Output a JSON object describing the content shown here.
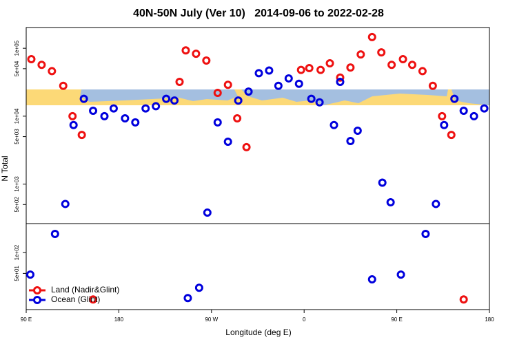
{
  "chart_data": [
    {
      "type": "scatter",
      "title": "40N-50N July (Ver 10)   2014-09-06 to 2022-02-28",
      "y_label": "N Total",
      "log_y": true,
      "xlim": [
        90,
        540
      ],
      "ylim": [
        262,
        202000
      ],
      "yticks": [
        {
          "value": 500,
          "label": "5e+02"
        },
        {
          "value": 1000,
          "label": "1e+03"
        },
        {
          "value": 5000,
          "label": "5e+03"
        },
        {
          "value": 10000,
          "label": "1e+04"
        },
        {
          "value": 50000,
          "label": "5e+04"
        },
        {
          "value": 100000,
          "label": "1e+05"
        }
      ],
      "series": [
        {
          "color": "#ee1111",
          "x": [
            95,
            105,
            115,
            126,
            135,
            144,
            239,
            245,
            255,
            265,
            276,
            286,
            295,
            304,
            357,
            365,
            376,
            385,
            395,
            405,
            415,
            426,
            435,
            445,
            456,
            465,
            475,
            485,
            494,
            503
          ],
          "values": [
            69000,
            57000,
            46000,
            28000,
            10000,
            5300,
            32000,
            93000,
            83000,
            66000,
            22000,
            29000,
            9300,
            3500,
            48000,
            51000,
            48000,
            60000,
            37000,
            52000,
            81000,
            146000,
            87000,
            57000,
            69000,
            57000,
            46000,
            28000,
            10000,
            5300
          ]
        },
        {
          "color": "#0000dd",
          "x": [
            128,
            136,
            146,
            155,
            166,
            175,
            186,
            196,
            206,
            216,
            226,
            234,
            266,
            276,
            286,
            296,
            306,
            316,
            326,
            335,
            345,
            355,
            367,
            375,
            389,
            395,
            405,
            412,
            436,
            444,
            488,
            496,
            506,
            515,
            525,
            535
          ],
          "values": [
            510,
            7400,
            18000,
            12000,
            10000,
            13000,
            9300,
            8100,
            13000,
            14000,
            18000,
            17000,
            380,
            8100,
            4200,
            17000,
            23000,
            43000,
            47000,
            28000,
            36000,
            30000,
            18000,
            16000,
            7400,
            32000,
            4300,
            6100,
            1050,
            540,
            510,
            7400,
            18000,
            12000,
            10000,
            13000
          ]
        }
      ]
    },
    {
      "type": "scatter",
      "x_label": "Longitude (deg E)",
      "log_y": true,
      "xlim": [
        90,
        540
      ],
      "ylim": [
        15,
        262
      ],
      "xticks": [
        {
          "value": 90,
          "label": "90 E"
        },
        {
          "value": 180,
          "label": "180"
        },
        {
          "value": 270,
          "label": "90 W"
        },
        {
          "value": 360,
          "label": "0"
        },
        {
          "value": 450,
          "label": "90 E"
        },
        {
          "value": 540,
          "label": "180"
        }
      ],
      "yticks": [
        {
          "value": 50,
          "label": "5e+01"
        },
        {
          "value": 100,
          "label": "1e+02"
        }
      ],
      "legend": "bottom-left",
      "series": [
        {
          "name": "Land (Nadir&Glint)",
          "color": "#ee1111",
          "x": [
            155,
            515
          ],
          "values": [
            21,
            21
          ]
        },
        {
          "name": "Ocean (Glint)",
          "color": "#0000dd",
          "x": [
            94,
            118,
            247,
            258,
            426,
            454,
            478
          ],
          "values": [
            48,
            186,
            22,
            31,
            41,
            48,
            186
          ]
        }
      ]
    }
  ]
}
